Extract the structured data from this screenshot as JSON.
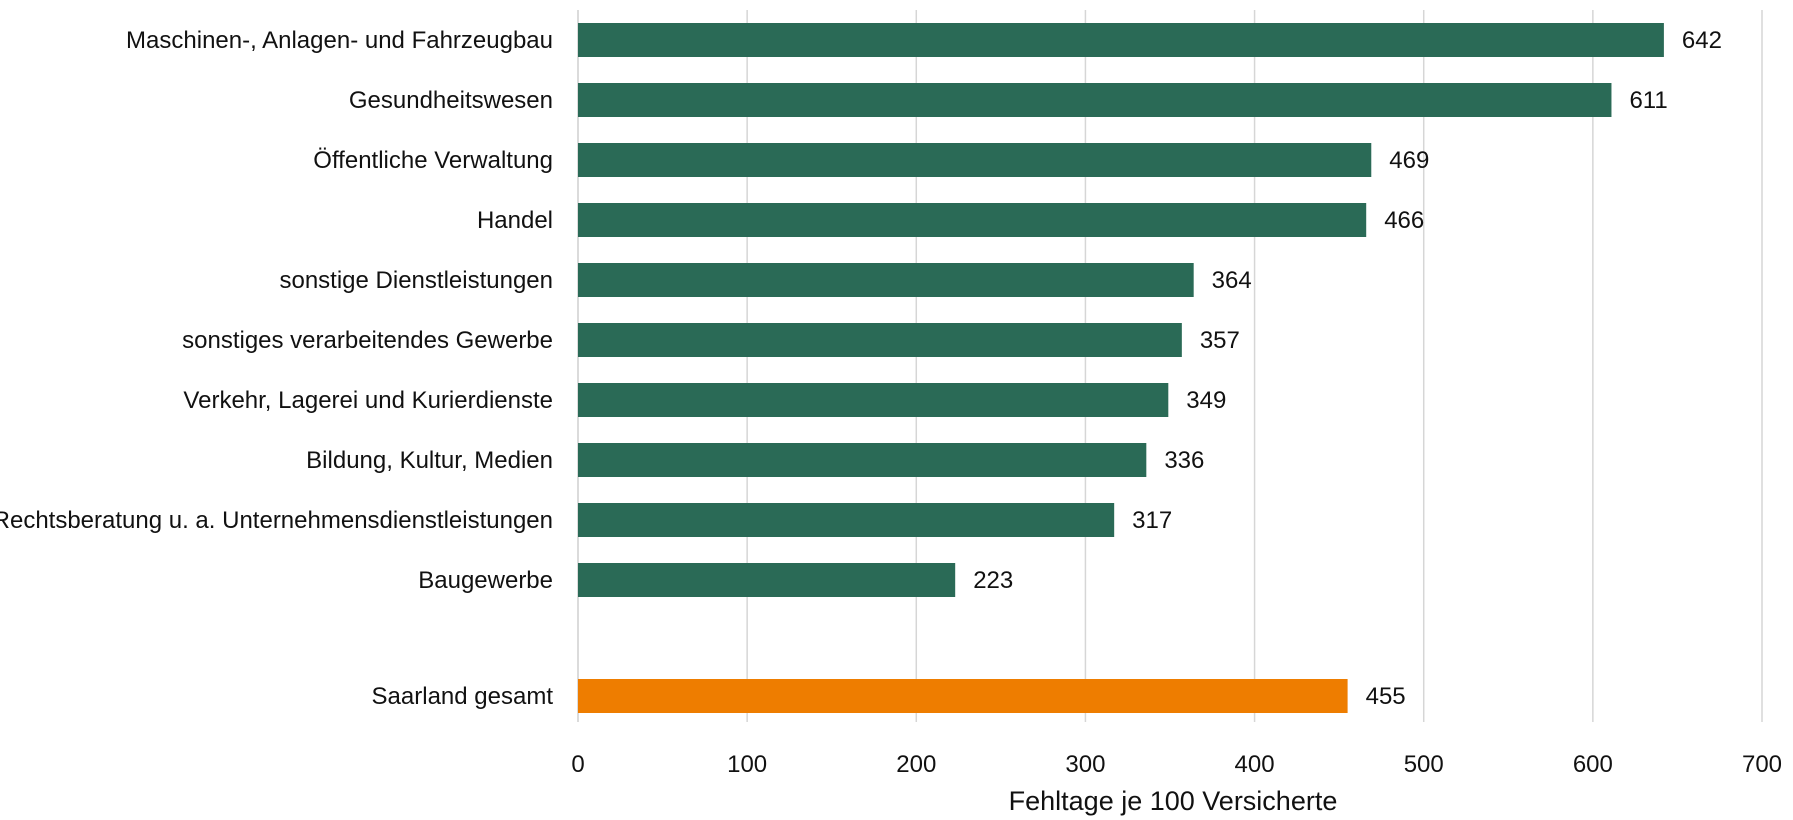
{
  "chart_data": {
    "type": "bar",
    "orientation": "horizontal",
    "categories": [
      "Maschinen-, Anlagen- und Fahrzeugbau",
      "Gesundheitswesen",
      "Öffentliche Verwaltung",
      "Handel",
      "sonstige Dienstleistungen",
      "sonstiges verarbeitendes Gewerbe",
      "Verkehr, Lagerei und Kurierdienste",
      "Bildung, Kultur, Medien",
      "Rechtsberatung u. a. Unternehmensdienstleistungen",
      "Baugewerbe"
    ],
    "values": [
      642,
      611,
      469,
      466,
      364,
      357,
      349,
      336,
      317,
      223
    ],
    "total": {
      "category": "Saarland gesamt",
      "value": 455
    },
    "xlabel": "Fehltage je 100 Versicherte",
    "ylabel": "",
    "xlim": [
      0,
      700
    ],
    "xticks": [
      "0",
      "100",
      "200",
      "300",
      "400",
      "500",
      "600",
      "700"
    ],
    "grid": true,
    "colors": {
      "bar": "#2a6a56",
      "total_bar": "#ee7d00"
    }
  }
}
